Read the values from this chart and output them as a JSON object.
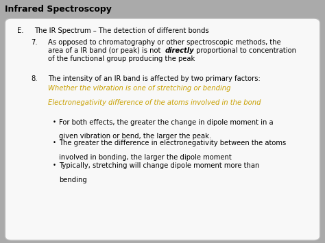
{
  "title": "Infrared Spectroscopy",
  "title_color": "#000000",
  "title_bg_color": "#cccccc",
  "slide_bg_color": "#aaaaaa",
  "content_bg_color": "#f8f8f8",
  "section_label": "E.",
  "section_text": "The IR Spectrum – The detection of different bonds",
  "item7_label": "7.",
  "item7_line1": "As opposed to chromatography or other spectroscopic methods, the",
  "item7_line2_pre": "area of a IR band (or peak) is not ",
  "item7_line2_bold": "directly",
  "item7_line2_post": " proportional to concentration",
  "item7_line3": "of the functional group producing the peak",
  "item8_label": "8.",
  "item8_text": "The intensity of an IR band is affected by two primary factors:",
  "italic_line1": "Whether the vibration is one of stretching or bending",
  "italic_line2": "Electronegativity difference of the atoms involved in the bond",
  "italic_color": "#c8a000",
  "bullets": [
    [
      "For both effects, the greater the change in dipole moment in a",
      "given vibration or bend, the larger the peak."
    ],
    [
      "The greater the difference in electronegativity between the atoms",
      "involved in bonding, the larger the dipole moment"
    ],
    [
      "Typically, stretching will change dipole moment more than",
      "bending"
    ]
  ],
  "text_color": "#000000",
  "font_size_title": 9,
  "font_size_body": 7.2
}
